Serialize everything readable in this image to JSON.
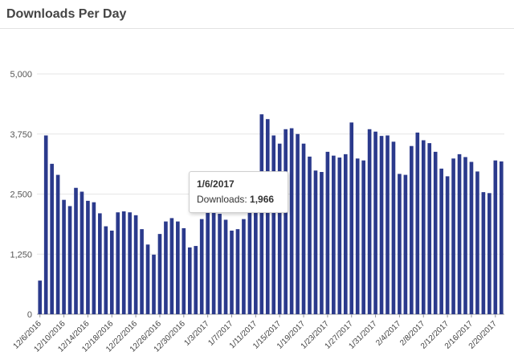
{
  "panel": {
    "title": "Downloads Per Day"
  },
  "tooltip": {
    "date": "1/6/2017",
    "label": "Downloads:",
    "value": "1,966"
  },
  "chart_data": {
    "type": "bar",
    "title": "Downloads Per Day",
    "xlabel": "",
    "ylabel": "",
    "ylim": [
      0,
      5000
    ],
    "yticks": [
      0,
      1250,
      2500,
      3750,
      5000
    ],
    "ytick_labels": [
      "0",
      "1,250",
      "2,500",
      "3,750",
      "5,000"
    ],
    "grid": true,
    "bar_color": "#2b3a8c",
    "categories": [
      "12/6/2016",
      "12/7/2016",
      "12/8/2016",
      "12/9/2016",
      "12/10/2016",
      "12/11/2016",
      "12/12/2016",
      "12/13/2016",
      "12/14/2016",
      "12/15/2016",
      "12/16/2016",
      "12/17/2016",
      "12/18/2016",
      "12/19/2016",
      "12/20/2016",
      "12/21/2016",
      "12/22/2016",
      "12/23/2016",
      "12/24/2016",
      "12/25/2016",
      "12/26/2016",
      "12/27/2016",
      "12/28/2016",
      "12/29/2016",
      "12/30/2016",
      "12/31/2016",
      "1/1/2017",
      "1/2/2017",
      "1/3/2017",
      "1/4/2017",
      "1/5/2017",
      "1/6/2017",
      "1/7/2017",
      "1/8/2017",
      "1/9/2017",
      "1/10/2017",
      "1/11/2017",
      "1/12/2017",
      "1/13/2017",
      "1/14/2017",
      "1/15/2017",
      "1/16/2017",
      "1/17/2017",
      "1/18/2017",
      "1/19/2017",
      "1/20/2017",
      "1/21/2017",
      "1/22/2017",
      "1/23/2017",
      "1/24/2017",
      "1/25/2017",
      "1/26/2017",
      "1/27/2017",
      "1/28/2017",
      "1/29/2017",
      "1/30/2017",
      "1/31/2017",
      "2/1/2017",
      "2/2/2017",
      "2/3/2017",
      "2/4/2017",
      "2/5/2017",
      "2/6/2017",
      "2/7/2017",
      "2/8/2017",
      "2/9/2017",
      "2/10/2017",
      "2/11/2017",
      "2/12/2017",
      "2/13/2017",
      "2/14/2017",
      "2/15/2017",
      "2/16/2017",
      "2/17/2017",
      "2/18/2017",
      "2/19/2017",
      "2/20/2017",
      "2/21/2017"
    ],
    "values": [
      700,
      3720,
      3130,
      2900,
      2380,
      2250,
      2630,
      2550,
      2360,
      2330,
      2100,
      1830,
      1740,
      2120,
      2140,
      2120,
      2060,
      1770,
      1450,
      1240,
      1670,
      1930,
      2000,
      1930,
      1790,
      1390,
      1420,
      1980,
      2130,
      2150,
      2090,
      1966,
      1740,
      1770,
      1980,
      2140,
      2170,
      4160,
      4060,
      3720,
      3550,
      3850,
      3870,
      3750,
      3550,
      3280,
      2990,
      2960,
      3380,
      3300,
      3260,
      3330,
      3990,
      3240,
      3200,
      3850,
      3800,
      3710,
      3720,
      3590,
      2920,
      2900,
      3500,
      3780,
      3620,
      3560,
      3380,
      3030,
      2870,
      3240,
      3330,
      3270,
      3170,
      2970,
      2540,
      2520,
      3200,
      3180
    ],
    "x_tick_labels": [
      "12/6/2016",
      "12/10/2016",
      "12/14/2016",
      "12/18/2016",
      "12/22/2016",
      "12/26/2016",
      "12/30/2016",
      "1/3/2017",
      "1/7/2017",
      "1/11/2017",
      "1/15/2017",
      "1/19/2017",
      "1/23/2017",
      "1/27/2017",
      "1/31/2017",
      "2/4/2017",
      "2/8/2017",
      "2/12/2017",
      "2/16/2017",
      "2/20/2017"
    ]
  }
}
